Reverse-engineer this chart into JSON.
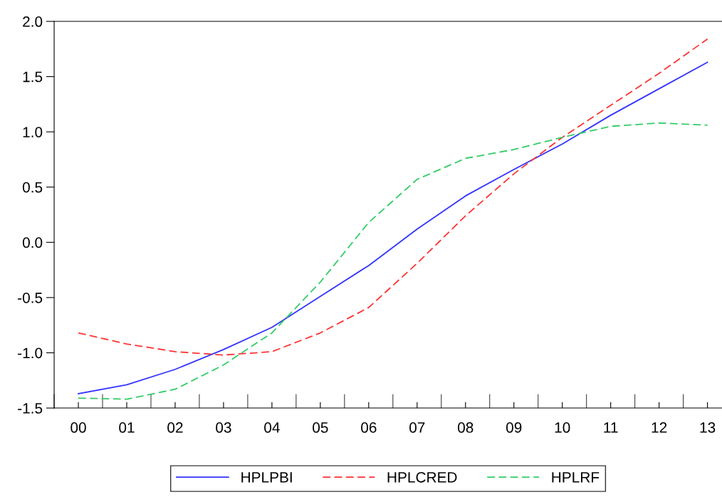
{
  "chart_data": {
    "type": "line",
    "categories": [
      "00",
      "01",
      "02",
      "03",
      "04",
      "05",
      "06",
      "07",
      "08",
      "09",
      "10",
      "11",
      "12",
      "13"
    ],
    "ylim": [
      -1.5,
      2.0
    ],
    "yticks": [
      {
        "value": -1.5,
        "label": "-1.5"
      },
      {
        "value": -1.0,
        "label": "-1.0"
      },
      {
        "value": -0.5,
        "label": "-0.5"
      },
      {
        "value": 0.0,
        "label": "0.0"
      },
      {
        "value": 0.5,
        "label": "0.5"
      },
      {
        "value": 1.0,
        "label": "1.0"
      },
      {
        "value": 1.5,
        "label": "1.5"
      },
      {
        "value": 2.0,
        "label": "2.0"
      }
    ],
    "grid": false,
    "legend": "bottom",
    "marker": "none",
    "series": [
      {
        "name": "HPLPBI",
        "color": "#3333ff",
        "line_style": "solid",
        "values": [
          -1.37,
          -1.29,
          -1.15,
          -0.97,
          -0.77,
          -0.49,
          -0.21,
          0.12,
          0.42,
          0.66,
          0.89,
          1.15,
          1.39,
          1.63
        ]
      },
      {
        "name": "HPLCRED",
        "color": "#ff3333",
        "line_style": "dashed",
        "values": [
          -0.82,
          -0.92,
          -0.99,
          -1.02,
          -0.99,
          -0.82,
          -0.59,
          -0.19,
          0.24,
          0.62,
          0.95,
          1.24,
          1.53,
          1.84
        ]
      },
      {
        "name": "HPLRF",
        "color": "#33cc66",
        "line_style": "dashed",
        "values": [
          -1.41,
          -1.42,
          -1.33,
          -1.11,
          -0.82,
          -0.36,
          0.18,
          0.57,
          0.76,
          0.84,
          0.95,
          1.05,
          1.08,
          1.06
        ]
      }
    ]
  }
}
